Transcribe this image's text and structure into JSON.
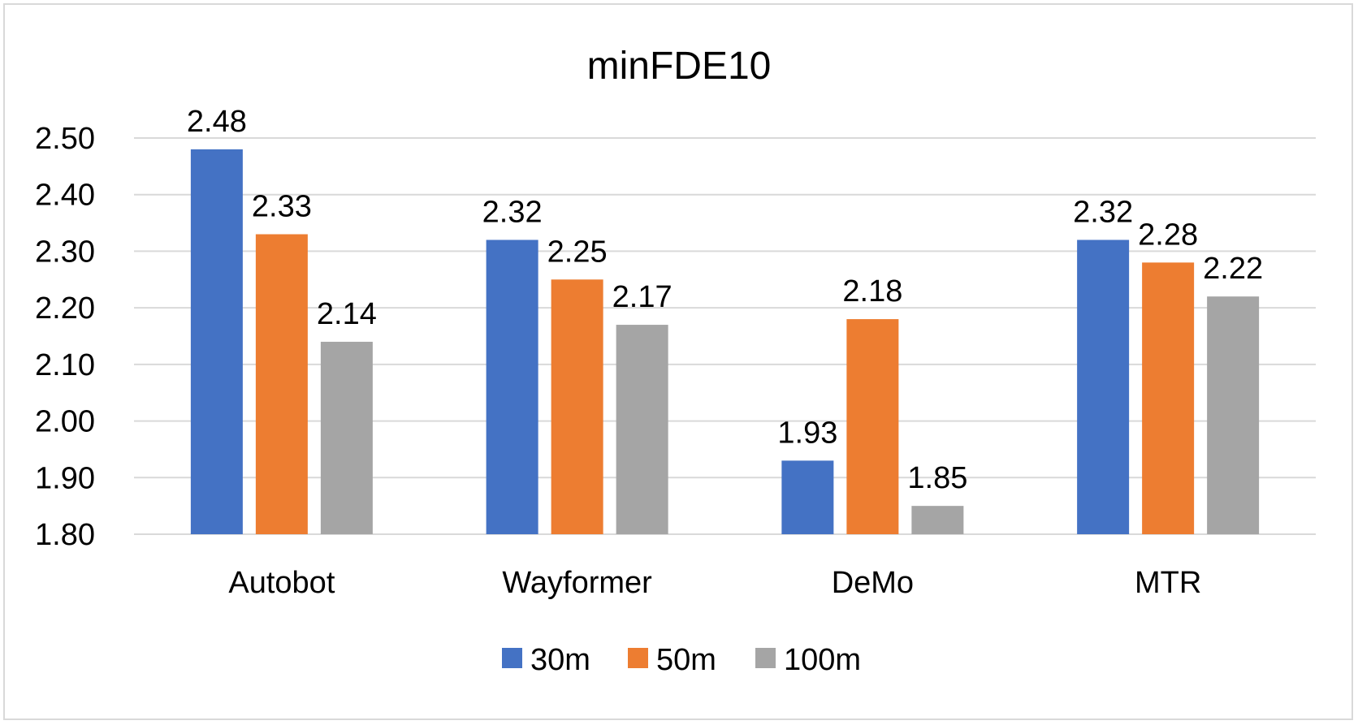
{
  "chart_data": {
    "type": "bar",
    "title": "minFDE10",
    "xlabel": "",
    "ylabel": "",
    "categories": [
      "Autobot",
      "Wayformer",
      "DeMo",
      "MTR"
    ],
    "series": [
      {
        "name": "30m",
        "color": "#4472c4",
        "values": [
          2.48,
          2.32,
          1.93,
          2.32
        ]
      },
      {
        "name": "50m",
        "color": "#ed7d31",
        "values": [
          2.33,
          2.25,
          2.18,
          2.28
        ]
      },
      {
        "name": "100m",
        "color": "#a5a5a5",
        "values": [
          2.14,
          2.17,
          1.85,
          2.22
        ]
      }
    ],
    "ylim": [
      1.8,
      2.5
    ],
    "yticks": [
      "1.80",
      "1.90",
      "2.00",
      "2.10",
      "2.20",
      "2.30",
      "2.40",
      "2.50"
    ],
    "grid": true,
    "legend_position": "bottom",
    "gridline_color": "#d9d9d9"
  }
}
